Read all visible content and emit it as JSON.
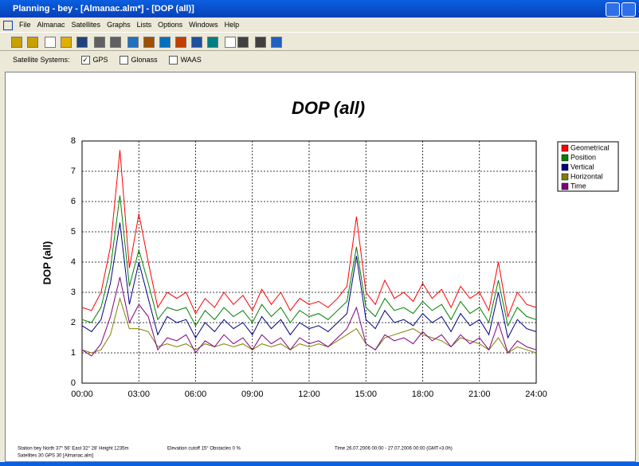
{
  "window": {
    "title": "Planning - bey - [Almanac.alm*] - [DOP (all)]",
    "menu": [
      "File",
      "Almanac",
      "Satellites",
      "Graphs",
      "Lists",
      "Options",
      "Windows",
      "Help"
    ]
  },
  "systems": {
    "label": "Satellite Systems:",
    "options": [
      {
        "label": "GPS",
        "checked": true
      },
      {
        "label": "Glonass",
        "checked": false
      },
      {
        "label": "WAAS",
        "checked": false
      }
    ]
  },
  "chart_data": {
    "type": "line",
    "title": "DOP (all)",
    "y_label": "DOP (all)",
    "x": [
      0,
      0.5,
      1,
      1.5,
      2,
      2.5,
      3,
      3.5,
      4,
      4.5,
      5,
      5.5,
      6,
      6.5,
      7,
      7.5,
      8,
      8.5,
      9,
      9.5,
      10,
      10.5,
      11,
      11.5,
      12,
      12.5,
      13,
      13.5,
      14,
      14.5,
      15,
      15.5,
      16,
      16.5,
      17,
      17.5,
      18,
      18.5,
      19,
      19.5,
      20,
      20.5,
      21,
      21.5,
      22,
      22.5,
      23,
      23.5,
      24
    ],
    "series": [
      {
        "name": "Geometrical",
        "color": "#ff0000",
        "values": [
          2.5,
          2.4,
          3.0,
          4.5,
          7.7,
          3.8,
          5.6,
          4.0,
          2.5,
          3.0,
          2.8,
          3.0,
          2.3,
          2.8,
          2.5,
          3.0,
          2.6,
          2.9,
          2.4,
          3.1,
          2.6,
          3.0,
          2.4,
          2.8,
          2.6,
          2.7,
          2.5,
          2.8,
          3.2,
          5.5,
          3.0,
          2.6,
          3.4,
          2.8,
          3.0,
          2.7,
          3.3,
          2.8,
          3.1,
          2.5,
          3.2,
          2.8,
          3.0,
          2.4,
          4.0,
          2.2,
          3.0,
          2.6,
          2.5
        ]
      },
      {
        "name": "Position",
        "color": "#008000",
        "values": [
          2.1,
          2.0,
          2.5,
          3.8,
          6.2,
          3.2,
          4.4,
          3.3,
          2.1,
          2.5,
          2.4,
          2.5,
          1.9,
          2.4,
          2.1,
          2.5,
          2.2,
          2.4,
          2.0,
          2.6,
          2.2,
          2.5,
          2.0,
          2.4,
          2.2,
          2.3,
          2.1,
          2.4,
          2.7,
          4.5,
          2.5,
          2.2,
          2.8,
          2.4,
          2.5,
          2.3,
          2.7,
          2.4,
          2.6,
          2.1,
          2.7,
          2.3,
          2.5,
          2.0,
          3.4,
          1.9,
          2.5,
          2.2,
          2.1
        ]
      },
      {
        "name": "Vertical",
        "color": "#000080",
        "values": [
          1.9,
          1.7,
          2.1,
          3.3,
          5.3,
          2.6,
          4.0,
          2.8,
          1.6,
          2.2,
          2.0,
          2.1,
          1.5,
          2.0,
          1.7,
          2.1,
          1.8,
          2.0,
          1.6,
          2.2,
          1.8,
          2.1,
          1.6,
          2.0,
          1.8,
          1.9,
          1.7,
          2.0,
          2.3,
          4.2,
          2.1,
          1.8,
          2.4,
          2.0,
          2.1,
          1.9,
          2.3,
          2.0,
          2.2,
          1.7,
          2.3,
          1.9,
          2.1,
          1.6,
          3.0,
          1.5,
          2.1,
          1.8,
          1.7
        ]
      },
      {
        "name": "Horizontal",
        "color": "#808000",
        "values": [
          1.1,
          1.0,
          1.1,
          1.6,
          2.8,
          1.8,
          1.8,
          1.7,
          1.2,
          1.3,
          1.2,
          1.3,
          1.1,
          1.3,
          1.2,
          1.3,
          1.2,
          1.3,
          1.1,
          1.3,
          1.2,
          1.3,
          1.1,
          1.3,
          1.2,
          1.3,
          1.2,
          1.4,
          1.6,
          1.8,
          1.3,
          1.1,
          1.5,
          1.6,
          1.7,
          1.8,
          1.6,
          1.5,
          1.4,
          1.2,
          1.5,
          1.4,
          1.3,
          1.1,
          1.5,
          1.0,
          1.2,
          1.1,
          1.0
        ]
      },
      {
        "name": "Time",
        "color": "#800080",
        "values": [
          1.1,
          0.9,
          1.3,
          2.2,
          3.5,
          2.0,
          2.6,
          2.2,
          1.1,
          1.5,
          1.4,
          1.6,
          1.0,
          1.4,
          1.2,
          1.6,
          1.3,
          1.5,
          1.1,
          1.6,
          1.3,
          1.5,
          1.1,
          1.5,
          1.3,
          1.4,
          1.2,
          1.5,
          1.8,
          2.5,
          1.3,
          1.1,
          1.6,
          1.4,
          1.5,
          1.3,
          1.7,
          1.4,
          1.6,
          1.2,
          1.6,
          1.3,
          1.5,
          1.1,
          2.0,
          1.0,
          1.4,
          1.2,
          1.1
        ]
      }
    ],
    "xlim": [
      0,
      24
    ],
    "xticks": [
      {
        "value": 0,
        "label": "00:00"
      },
      {
        "value": 3,
        "label": "03:00"
      },
      {
        "value": 6,
        "label": "06:00"
      },
      {
        "value": 9,
        "label": "09:00"
      },
      {
        "value": 12,
        "label": "12:00"
      },
      {
        "value": 15,
        "label": "15:00"
      },
      {
        "value": 18,
        "label": "18:00"
      },
      {
        "value": 21,
        "label": "21:00"
      },
      {
        "value": 24,
        "label": "24:00"
      }
    ],
    "ylim": [
      0,
      8
    ],
    "yticks": [
      0,
      1,
      2,
      3,
      4,
      5,
      6,
      7,
      8
    ],
    "grid": true,
    "legend": "right"
  },
  "status": {
    "station": "Station bey   North 37° 56'   East 32° 28'   Height 1235m",
    "cutoff": "Elevation cutoff 15°  Obstacles 0 %",
    "satellites": "Satellites 30  GPS 30  [Almanac.alm]",
    "time": "Time 26.07.2006 00:00 -  27.07.2006 00:00  (GMT+3.0h)"
  }
}
